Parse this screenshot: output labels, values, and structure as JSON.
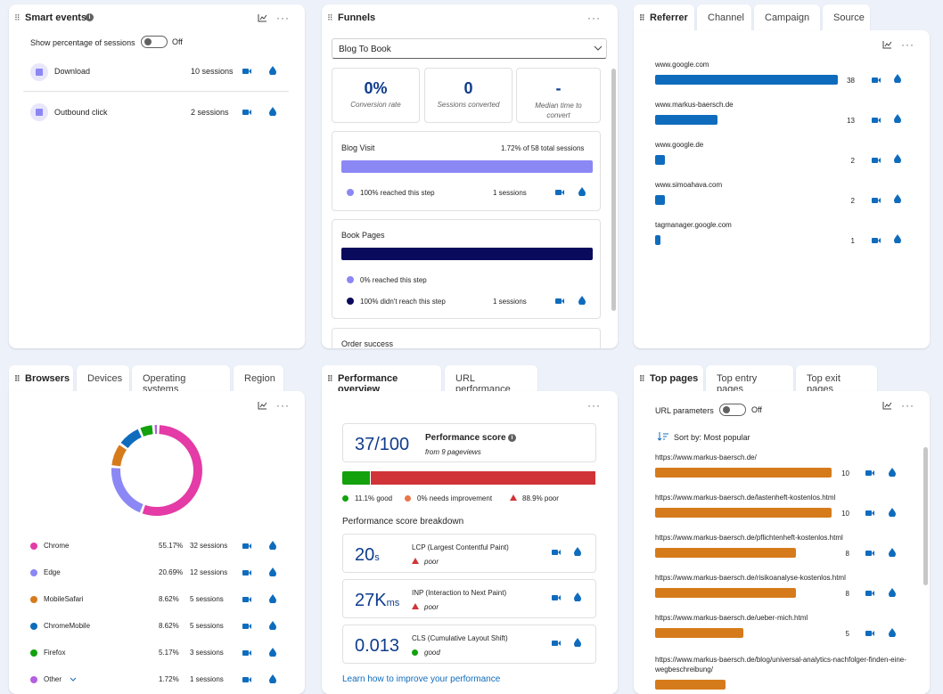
{
  "smart_events": {
    "title": "Smart events",
    "toggle_label": "Show percentage of sessions",
    "toggle_state": "Off",
    "items": [
      {
        "label": "Download",
        "sessions": "10 sessions"
      },
      {
        "label": "Outbound click",
        "sessions": "2 sessions"
      }
    ]
  },
  "funnels": {
    "title": "Funnels",
    "select_value": "Blog To Book",
    "stats": [
      {
        "value": "0%",
        "label": "Conversion rate"
      },
      {
        "value": "0",
        "label": "Sessions converted"
      },
      {
        "value": "-",
        "label": "Median time to convert"
      }
    ],
    "steps": [
      {
        "name": "Blog Visit",
        "summary": "1.72% of 58 total sessions",
        "reached": "100% reached this step",
        "reached_sessions": "1 sessions",
        "fill": 1.0,
        "color": "#8b87f5"
      },
      {
        "name": "Book Pages",
        "summary": "",
        "reached": "0% reached this step",
        "not_reached": "100% didn't reach this step",
        "not_reached_sessions": "1 sessions",
        "fill": 1.0,
        "color": "#0a0a5c"
      },
      {
        "name": "Order success"
      }
    ]
  },
  "referrer": {
    "tabs": [
      "Referrer",
      "Channel",
      "Campaign",
      "Source"
    ],
    "items": [
      {
        "label": "www.google.com",
        "value": "38",
        "fill": 1.0
      },
      {
        "label": "www.markus-baersch.de",
        "value": "13",
        "fill": 0.342
      },
      {
        "label": "www.google.de",
        "value": "2",
        "fill": 0.053
      },
      {
        "label": "www.simoahava.com",
        "value": "2",
        "fill": 0.053
      },
      {
        "label": "tagmanager.google.com",
        "value": "1",
        "fill": 0.026
      }
    ],
    "bar_color": "#0f6cbd"
  },
  "browsers": {
    "tabs": [
      "Browsers",
      "Devices",
      "Operating systems",
      "Region"
    ],
    "items": [
      {
        "label": "Chrome",
        "pct": "55.17%",
        "sessions": "32 sessions",
        "color": "#e43ba6",
        "value": 55.17
      },
      {
        "label": "Edge",
        "pct": "20.69%",
        "sessions": "12 sessions",
        "color": "#8b87f5",
        "value": 20.69
      },
      {
        "label": "MobileSafari",
        "pct": "8.62%",
        "sessions": "5 sessions",
        "color": "#d67b1b",
        "value": 8.62
      },
      {
        "label": "ChromeMobile",
        "pct": "8.62%",
        "sessions": "5 sessions",
        "color": "#0f6cbd",
        "value": 8.62
      },
      {
        "label": "Firefox",
        "pct": "5.17%",
        "sessions": "3 sessions",
        "color": "#13a10e",
        "value": 5.17
      },
      {
        "label": "Other",
        "pct": "1.72%",
        "sessions": "1 sessions",
        "color": "#b45fe0",
        "value": 1.72
      }
    ]
  },
  "performance": {
    "tabs": [
      "Performance overview",
      "URL performance"
    ],
    "score": "37/100",
    "score_label": "Performance score",
    "score_sub": "from 9 pageviews",
    "good_pct": 11.1,
    "needs_pct": 0,
    "poor_pct": 88.9,
    "legend": [
      {
        "label": "11.1% good",
        "color": "#13a10e"
      },
      {
        "label": "0% needs improvement",
        "color": "#e97548"
      },
      {
        "label": "88.9% poor",
        "color": "#d13438"
      }
    ],
    "breakdown_title": "Performance score breakdown",
    "metrics": [
      {
        "value": "20",
        "unit": "s",
        "name": "LCP (Largest Contentful Paint)",
        "status": "poor"
      },
      {
        "value": "27K",
        "unit": "ms",
        "name": "INP (Interaction to Next Paint)",
        "status": "poor"
      },
      {
        "value": "0.013",
        "unit": "",
        "name": "CLS (Cumulative Layout Shift)",
        "status": "good"
      }
    ],
    "link": "Learn how to improve your performance"
  },
  "top_pages": {
    "tabs": [
      "Top pages",
      "Top entry pages",
      "Top exit pages"
    ],
    "toggle_label": "URL parameters",
    "toggle_state": "Off",
    "sort_label": "Sort by: Most popular",
    "bar_color": "#d67b1b",
    "items": [
      {
        "url": "https://www.markus-baersch.de/",
        "value": "10",
        "fill": 1.0
      },
      {
        "url": "https://www.markus-baersch.de/lastenheft-kostenlos.html",
        "value": "10",
        "fill": 1.0
      },
      {
        "url": "https://www.markus-baersch.de/pflichtenheft-kostenlos.html",
        "value": "8",
        "fill": 0.8
      },
      {
        "url": "https://www.markus-baersch.de/risikoanalyse-kostenlos.html",
        "value": "8",
        "fill": 0.8
      },
      {
        "url": "https://www.markus-baersch.de/ueber-mich.html",
        "value": "5",
        "fill": 0.5
      },
      {
        "url": "https://www.markus-baersch.de/blog/universal-analytics-nachfolger-finden-eine-wegbeschreibung/",
        "value": "",
        "fill": 0.4
      }
    ]
  },
  "icons": {
    "recording": "video-camera-icon",
    "heatmap": "heatmap-drop-icon",
    "chart": "chart-icon",
    "more": "more-options-icon",
    "drag": "drag-handle-icon",
    "info": "info-icon"
  }
}
